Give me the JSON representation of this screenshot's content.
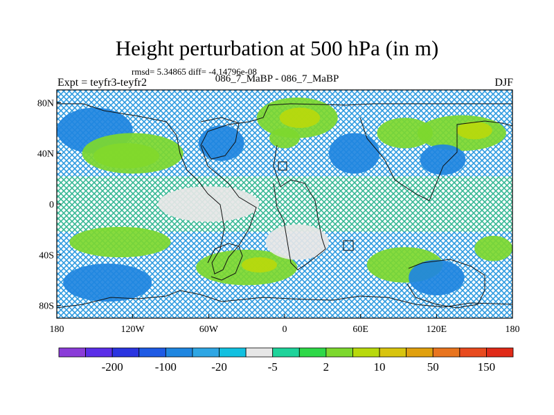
{
  "title": "Height perturbation at 500 hPa (in m)",
  "stats": "rmsd= 5.34865 diff= -4.14796e-08",
  "left_label": "Expt = teyfr3-teyfr2",
  "center_label": "086_7_MaBP - 086_7_MaBP",
  "right_label": "DJF",
  "map": {
    "lat_range": [
      -90,
      90
    ],
    "lon_range": [
      -180,
      180
    ],
    "lat_ticks": [
      {
        "value": 80,
        "label": "80N"
      },
      {
        "value": 40,
        "label": "40N"
      },
      {
        "value": 0,
        "label": "0"
      },
      {
        "value": -40,
        "label": "40S"
      },
      {
        "value": -80,
        "label": "80S"
      }
    ],
    "lon_ticks": [
      {
        "value": -180,
        "label": "180"
      },
      {
        "value": -120,
        "label": "120W"
      },
      {
        "value": -60,
        "label": "60W"
      },
      {
        "value": 0,
        "label": "0"
      },
      {
        "value": 60,
        "label": "60E"
      },
      {
        "value": 120,
        "label": "120E"
      },
      {
        "value": 180,
        "label": "180"
      }
    ],
    "background_pattern_color": "#2e9be0",
    "fill_regions": [
      {
        "lon": -150,
        "lat": 58,
        "rx": 30,
        "ry": 18,
        "color": "#1f86e0"
      },
      {
        "lon": -125,
        "lat": 38,
        "rx": 26,
        "ry": 10,
        "color": "#b8d90c"
      },
      {
        "lon": -120,
        "lat": 40,
        "rx": 40,
        "ry": 16,
        "color": "#7dd82e"
      },
      {
        "lon": -50,
        "lat": 48,
        "rx": 18,
        "ry": 14,
        "color": "#1f86e0"
      },
      {
        "lon": 10,
        "lat": 68,
        "rx": 32,
        "ry": 16,
        "color": "#7dd82e"
      },
      {
        "lon": 12,
        "lat": 68,
        "rx": 16,
        "ry": 8,
        "color": "#b8d90c"
      },
      {
        "lon": 0,
        "lat": 52,
        "rx": 12,
        "ry": 8,
        "color": "#7dd82e"
      },
      {
        "lon": 55,
        "lat": 40,
        "rx": 20,
        "ry": 16,
        "color": "#1f86e0"
      },
      {
        "lon": 95,
        "lat": 56,
        "rx": 22,
        "ry": 12,
        "color": "#7dd82e"
      },
      {
        "lon": 140,
        "lat": 56,
        "rx": 35,
        "ry": 14,
        "color": "#7dd82e"
      },
      {
        "lon": 150,
        "lat": 58,
        "rx": 14,
        "ry": 7,
        "color": "#b8d90c"
      },
      {
        "lon": 125,
        "lat": 35,
        "rx": 18,
        "ry": 12,
        "color": "#1f86e0"
      },
      {
        "lon": -130,
        "lat": -30,
        "rx": 40,
        "ry": 12,
        "color": "#7dd82e"
      },
      {
        "lon": -140,
        "lat": -62,
        "rx": 35,
        "ry": 15,
        "color": "#1f86e0"
      },
      {
        "lon": -30,
        "lat": -50,
        "rx": 40,
        "ry": 14,
        "color": "#7dd82e"
      },
      {
        "lon": -20,
        "lat": -48,
        "rx": 14,
        "ry": 6,
        "color": "#b8d90c"
      },
      {
        "lon": 95,
        "lat": -48,
        "rx": 30,
        "ry": 14,
        "color": "#7dd82e"
      },
      {
        "lon": 120,
        "lat": -58,
        "rx": 22,
        "ry": 14,
        "color": "#1f86e0"
      },
      {
        "lon": 165,
        "lat": -35,
        "rx": 15,
        "ry": 10,
        "color": "#7dd82e"
      },
      {
        "lon": 10,
        "lat": -30,
        "rx": 25,
        "ry": 14,
        "color": "#e6e6e6"
      },
      {
        "lon": -60,
        "lat": 0,
        "rx": 40,
        "ry": 14,
        "color": "#e6e6e6"
      }
    ]
  },
  "colorbar": {
    "colors": [
      "#8a3cd8",
      "#5a2ee8",
      "#2a34e0",
      "#1e5ae4",
      "#1f86e0",
      "#2ea6e4",
      "#12c0e0",
      "#e6e6e6",
      "#1ed39a",
      "#2ed848",
      "#7dd82e",
      "#b8d90c",
      "#d8c40e",
      "#e0a00e",
      "#e8741e",
      "#e84a1e",
      "#e02a18"
    ],
    "labels": [
      {
        "after_index": 1,
        "text": "-200"
      },
      {
        "after_index": 3,
        "text": "-100"
      },
      {
        "after_index": 5,
        "text": "-20"
      },
      {
        "after_index": 7,
        "text": "-5"
      },
      {
        "after_index": 9,
        "text": "2"
      },
      {
        "after_index": 11,
        "text": "10"
      },
      {
        "after_index": 13,
        "text": "50"
      },
      {
        "after_index": 15,
        "text": "150"
      }
    ]
  }
}
